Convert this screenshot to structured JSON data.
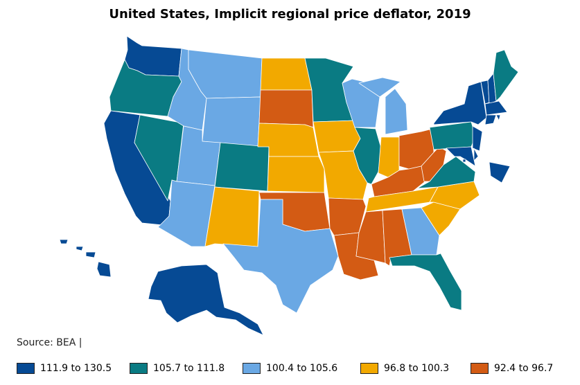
{
  "title": "United States, Implicit regional price deflator, 2019",
  "source": "Source: BEA |",
  "legend": [
    {
      "label": "111.9 to 130.5",
      "color": "#064a94"
    },
    {
      "label": "105.7 to 111.8",
      "color": "#0a7b83"
    },
    {
      "label": "100.4 to 105.6",
      "color": "#6aa8e4"
    },
    {
      "label": "96.8 to 100.3",
      "color": "#f2a900"
    },
    {
      "label": "92.4 to 96.7",
      "color": "#d35b14"
    }
  ],
  "states": {
    "WA": 0,
    "OR": 1,
    "CA": 0,
    "NV": 1,
    "ID": 2,
    "MT": 2,
    "WY": 2,
    "UT": 2,
    "AZ": 2,
    "CO": 1,
    "NM": 3,
    "ND": 3,
    "SD": 4,
    "NE": 3,
    "KS": 3,
    "OK": 4,
    "TX": 2,
    "MN": 1,
    "IA": 3,
    "MO": 3,
    "AR": 4,
    "LA": 4,
    "WI": 2,
    "IL": 1,
    "MI": 2,
    "IN": 3,
    "OH": 4,
    "KY": 4,
    "TN": 3,
    "MS": 4,
    "AL": 4,
    "GA": 2,
    "FL": 1,
    "SC": 3,
    "NC": 3,
    "VA": 1,
    "WV": 4,
    "PA": 1,
    "NY": 0,
    "VT": 0,
    "NH": 0,
    "ME": 1,
    "MA": 0,
    "RI": 0,
    "CT": 0,
    "NJ": 0,
    "DE": 0,
    "MD": 0,
    "DC": 0,
    "AK": 0,
    "HI": 0
  }
}
